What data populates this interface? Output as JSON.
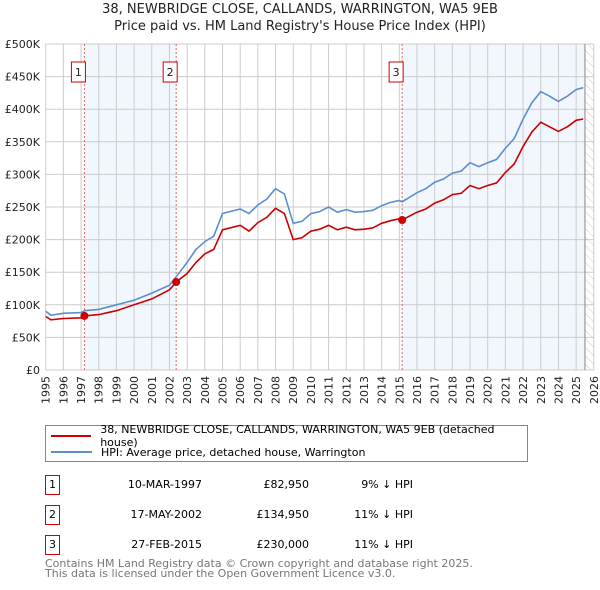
{
  "chart_data": {
    "type": "line",
    "title": "38, NEWBRIDGE CLOSE, CALLANDS, WARRINGTON, WA5 9EB",
    "subtitle": "Price paid vs. HM Land Registry's House Price Index (HPI)",
    "xlim": [
      1995,
      2026
    ],
    "ylim": [
      0,
      500000
    ],
    "grid": true,
    "x_ticks": [
      "1995",
      "1996",
      "1997",
      "1998",
      "1999",
      "2000",
      "2001",
      "2002",
      "2003",
      "2004",
      "2005",
      "2006",
      "2007",
      "2008",
      "2009",
      "2010",
      "2011",
      "2012",
      "2013",
      "2014",
      "2015",
      "2016",
      "2017",
      "2018",
      "2019",
      "2020",
      "2021",
      "2022",
      "2023",
      "2024",
      "2025",
      "2026"
    ],
    "y_ticks": [
      {
        "v": 0,
        "label": "£0"
      },
      {
        "v": 50000,
        "label": "£50K"
      },
      {
        "v": 100000,
        "label": "£100K"
      },
      {
        "v": 150000,
        "label": "£150K"
      },
      {
        "v": 200000,
        "label": "£200K"
      },
      {
        "v": 250000,
        "label": "£250K"
      },
      {
        "v": 300000,
        "label": "£300K"
      },
      {
        "v": 350000,
        "label": "£350K"
      },
      {
        "v": 400000,
        "label": "£400K"
      },
      {
        "v": 450000,
        "label": "£450K"
      },
      {
        "v": 500000,
        "label": "£500K"
      }
    ],
    "x": [
      1995,
      1995.3,
      1996,
      1997,
      1997.19,
      1998,
      1999,
      2000,
      2001,
      2002,
      2002.38,
      2003,
      2003.5,
      2004,
      2004.5,
      2005,
      2006,
      2006.5,
      2007,
      2007.5,
      2008,
      2008.5,
      2009,
      2009.5,
      2010,
      2010.5,
      2011,
      2011.5,
      2012,
      2012.5,
      2013,
      2013.5,
      2014,
      2014.5,
      2015,
      2015.16,
      2016,
      2016.5,
      2017,
      2017.5,
      2018,
      2018.5,
      2019,
      2019.5,
      2020,
      2020.5,
      2021,
      2021.5,
      2022,
      2022.5,
      2023,
      2023.5,
      2024,
      2024.5,
      2025,
      2025.4
    ],
    "series": [
      {
        "name": "38, NEWBRIDGE CLOSE, CALLANDS, WARRINGTON, WA5 9EB (detached house)",
        "color": "#cc0000",
        "values": [
          82,
          77,
          79,
          80,
          82.95,
          85,
          91,
          100,
          109,
          123,
          134.95,
          148,
          165,
          178,
          185,
          215,
          222,
          213,
          226,
          234,
          248,
          240,
          200,
          203,
          213,
          216,
          222,
          215,
          219,
          215,
          216,
          218,
          225,
          229,
          232,
          230,
          242,
          247,
          256,
          261,
          269,
          271,
          283,
          278,
          283,
          287,
          303,
          316,
          343,
          365,
          380,
          373,
          366,
          373,
          383,
          385
        ]
      },
      {
        "name": "HPI: Average price, detached house, Warrington",
        "color": "#5b8fd1",
        "values": [
          90,
          84,
          87,
          88,
          91,
          93,
          100,
          107,
          118,
          130,
          143,
          165,
          185,
          197,
          205,
          240,
          247,
          240,
          253,
          262,
          278,
          270,
          225,
          228,
          240,
          243,
          250,
          242,
          246,
          242,
          243,
          245,
          252,
          257,
          260,
          258,
          272,
          278,
          288,
          293,
          302,
          305,
          318,
          312,
          318,
          323,
          340,
          355,
          385,
          410,
          427,
          420,
          412,
          420,
          430,
          433
        ]
      }
    ],
    "value_unit": "thousands GBP",
    "sales": [
      {
        "n": "1",
        "x": 1997.19,
        "value": 82950,
        "date": "10-MAR-1997",
        "price": "£82,950",
        "hpi": "9% ↓ HPI"
      },
      {
        "n": "2",
        "x": 2002.38,
        "value": 134950,
        "date": "17-MAY-2002",
        "price": "£134,950",
        "hpi": "11% ↓ HPI"
      },
      {
        "n": "3",
        "x": 2015.16,
        "value": 230000,
        "date": "27-FEB-2015",
        "price": "£230,000",
        "hpi": "11% ↓ HPI"
      }
    ],
    "shaded_ranges": [
      [
        1997.19,
        2002.38
      ],
      [
        2015.16,
        2025.5
      ]
    ],
    "forecast_hatch": [
      2025.5,
      2026
    ],
    "legend_position": "below"
  },
  "footer": [
    "Contains HM Land Registry data © Crown copyright and database right 2025.",
    "This data is licensed under the Open Government Licence v3.0."
  ]
}
